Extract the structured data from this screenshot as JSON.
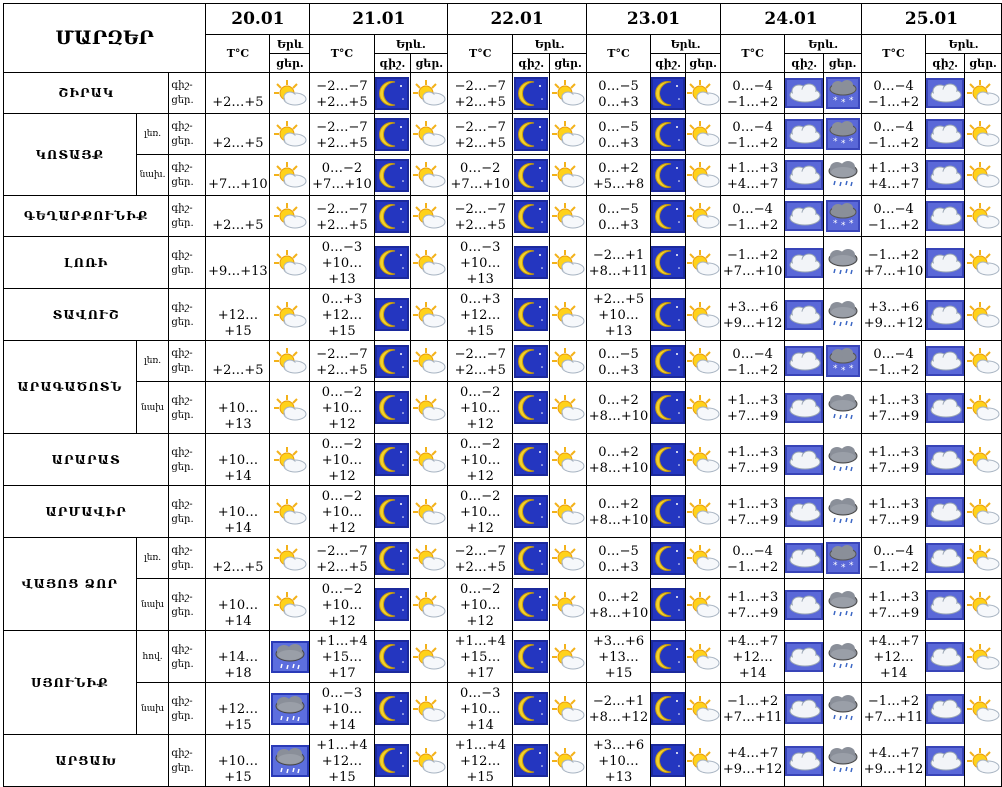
{
  "header": {
    "title": "ՄԱՐԶԵՐ",
    "dates": [
      "20.01",
      "21.01",
      "22.01",
      "23.01",
      "24.01",
      "25.01"
    ],
    "temp_label": "T°C",
    "weather_label": "Երև.",
    "weather_label_short": "Երև",
    "day_label": "ցեր.",
    "night_label": "գիշ."
  },
  "row_labels": {
    "night": "գիշ-",
    "day": "ցեր."
  },
  "regions": [
    {
      "name": "ՇԻՐԱԿ",
      "rows": [
        {
          "sub": "",
          "d0t": "+2…+5",
          "d0i": "sun-cloud",
          "t": [
            [
              "−2…−7",
              "+2…+5"
            ],
            [
              "−2…−7",
              "+2…+5"
            ],
            [
              "0…−5",
              "0…+3"
            ],
            [
              "0…−4",
              "−1…+2"
            ],
            [
              "0…−4",
              "−1…+2"
            ]
          ],
          "n": [
            "moon-night",
            "moon-night",
            "moon-night",
            "cloud",
            "cloud"
          ],
          "d": [
            "sun-cloud",
            "sun-cloud",
            "sun-cloud",
            "snow-cloud",
            "sun-cloud"
          ]
        }
      ]
    },
    {
      "name": "ԿՈՏԱՅՔ",
      "rows": [
        {
          "sub": "լեռ.",
          "d0t": "+2…+5",
          "d0i": "sun-cloud",
          "t": [
            [
              "−2…−7",
              "+2…+5"
            ],
            [
              "−2…−7",
              "+2…+5"
            ],
            [
              "0…−5",
              "0…+3"
            ],
            [
              "0…−4",
              "−1…+2"
            ],
            [
              "0…−4",
              "−1…+2"
            ]
          ],
          "n": [
            "moon-night",
            "moon-night",
            "moon-night",
            "cloud",
            "cloud"
          ],
          "d": [
            "sun-cloud",
            "sun-cloud",
            "sun-cloud",
            "snow-cloud",
            "sun-cloud"
          ]
        },
        {
          "sub": "նախ.",
          "d0t": "+7…+10",
          "d0i": "sun-cloud",
          "t": [
            [
              "0…−2",
              "+7…+10"
            ],
            [
              "0…−2",
              "+7…+10"
            ],
            [
              "0…+2",
              "+5…+8"
            ],
            [
              "+1…+3",
              "+4…+7"
            ],
            [
              "+1…+3",
              "+4…+7"
            ]
          ],
          "n": [
            "moon-night",
            "moon-night",
            "moon-night",
            "cloud",
            "cloud"
          ],
          "d": [
            "sun-cloud",
            "sun-cloud",
            "sun-cloud",
            "rain-cloud",
            "sun-cloud"
          ]
        }
      ]
    },
    {
      "name": "ԳԵՂԱՐՔՈՒՆԻՔ",
      "rows": [
        {
          "sub": "",
          "d0t": "+2…+5",
          "d0i": "sun-cloud",
          "t": [
            [
              "−2…−7",
              "+2…+5"
            ],
            [
              "−2…−7",
              "+2…+5"
            ],
            [
              "0…−5",
              "0…+3"
            ],
            [
              "0…−4",
              "−1…+2"
            ],
            [
              "0…−4",
              "−1…+2"
            ]
          ],
          "n": [
            "moon-night",
            "moon-night",
            "moon-night",
            "cloud",
            "cloud"
          ],
          "d": [
            "sun-cloud",
            "sun-cloud",
            "sun-cloud",
            "snow-cloud",
            "sun-cloud"
          ]
        }
      ]
    },
    {
      "name": "ԼՈՌԻ",
      "rows": [
        {
          "sub": "",
          "d0t": "+9…+13",
          "d0i": "sun-cloud",
          "t": [
            [
              "0…−3",
              "+10…+13"
            ],
            [
              "0…−3",
              "+10…+13"
            ],
            [
              "−2…+1",
              "+8…+11"
            ],
            [
              "−1…+2",
              "+7…+10"
            ],
            [
              "−1…+2",
              "+7…+10"
            ]
          ],
          "n": [
            "moon-night",
            "moon-night",
            "moon-night",
            "cloud",
            "cloud"
          ],
          "d": [
            "sun-cloud",
            "sun-cloud",
            "sun-cloud",
            "rain-cloud",
            "sun-cloud"
          ]
        }
      ]
    },
    {
      "name": "ՏԱՎՈՒՇ",
      "rows": [
        {
          "sub": "",
          "d0t": "+12…+15",
          "d0i": "sun-cloud",
          "t": [
            [
              "0…+3",
              "+12…+15"
            ],
            [
              "0…+3",
              "+12…+15"
            ],
            [
              "+2…+5",
              "+10…+13"
            ],
            [
              "+3…+6",
              "+9…+12"
            ],
            [
              "+3…+6",
              "+9…+12"
            ]
          ],
          "n": [
            "moon-night",
            "moon-night",
            "moon-night",
            "cloud",
            "cloud"
          ],
          "d": [
            "sun-cloud",
            "sun-cloud",
            "sun-cloud",
            "rain-cloud",
            "sun-cloud"
          ]
        }
      ]
    },
    {
      "name": "ԱՐԱԳԱԾՈՏՆ",
      "rows": [
        {
          "sub": "լեռ.",
          "d0t": "+2…+5",
          "d0i": "sun-cloud",
          "t": [
            [
              "−2…−7",
              "+2…+5"
            ],
            [
              "−2…−7",
              "+2…+5"
            ],
            [
              "0…−5",
              "0…+3"
            ],
            [
              "0…−4",
              "−1…+2"
            ],
            [
              "0…−4",
              "−1…+2"
            ]
          ],
          "n": [
            "moon-night",
            "moon-night",
            "moon-night",
            "cloud",
            "cloud"
          ],
          "d": [
            "sun-cloud",
            "sun-cloud",
            "sun-cloud",
            "snow-cloud",
            "sun-cloud"
          ]
        },
        {
          "sub": "նախ",
          "d0t": "+10…+13",
          "d0i": "sun-cloud",
          "t": [
            [
              "0…−2",
              "+10…+12"
            ],
            [
              "0…−2",
              "+10…+12"
            ],
            [
              "0…+2",
              "+8…+10"
            ],
            [
              "+1…+3",
              "+7…+9"
            ],
            [
              "+1…+3",
              "+7…+9"
            ]
          ],
          "n": [
            "moon-night",
            "moon-night",
            "moon-night",
            "cloud",
            "cloud"
          ],
          "d": [
            "sun-cloud",
            "sun-cloud",
            "sun-cloud",
            "rain-cloud",
            "sun-cloud"
          ]
        }
      ]
    },
    {
      "name": "ԱՐԱՐԱՏ",
      "rows": [
        {
          "sub": "",
          "d0t": "+10…+14",
          "d0i": "sun-cloud",
          "t": [
            [
              "0…−2",
              "+10…+12"
            ],
            [
              "0…−2",
              "+10…+12"
            ],
            [
              "0…+2",
              "+8…+10"
            ],
            [
              "+1…+3",
              "+7…+9"
            ],
            [
              "+1…+3",
              "+7…+9"
            ]
          ],
          "n": [
            "moon-night",
            "moon-night",
            "moon-night",
            "cloud",
            "cloud"
          ],
          "d": [
            "sun-cloud",
            "sun-cloud",
            "sun-cloud",
            "rain-cloud",
            "sun-cloud"
          ]
        }
      ]
    },
    {
      "name": "ԱՐՄԱՎԻՐ",
      "rows": [
        {
          "sub": "",
          "d0t": "+10…+14",
          "d0i": "sun-cloud",
          "t": [
            [
              "0…−2",
              "+10…+12"
            ],
            [
              "0…−2",
              "+10…+12"
            ],
            [
              "0…+2",
              "+8…+10"
            ],
            [
              "+1…+3",
              "+7…+9"
            ],
            [
              "+1…+3",
              "+7…+9"
            ]
          ],
          "n": [
            "moon-night",
            "moon-night",
            "moon-night",
            "cloud",
            "cloud"
          ],
          "d": [
            "sun-cloud",
            "sun-cloud",
            "sun-cloud",
            "rain-cloud",
            "sun-cloud"
          ]
        }
      ]
    },
    {
      "name": "ՎԱՅՈՑ ՁՈՐ",
      "rows": [
        {
          "sub": "լեռ.",
          "d0t": "+2…+5",
          "d0i": "sun-cloud",
          "t": [
            [
              "−2…−7",
              "+2…+5"
            ],
            [
              "−2…−7",
              "+2…+5"
            ],
            [
              "0…−5",
              "0…+3"
            ],
            [
              "0…−4",
              "−1…+2"
            ],
            [
              "0…−4",
              "−1…+2"
            ]
          ],
          "n": [
            "moon-night",
            "moon-night",
            "moon-night",
            "cloud",
            "cloud"
          ],
          "d": [
            "sun-cloud",
            "sun-cloud",
            "sun-cloud",
            "snow-cloud",
            "sun-cloud"
          ]
        },
        {
          "sub": "նախ",
          "d0t": "+10…+14",
          "d0i": "sun-cloud",
          "t": [
            [
              "0…−2",
              "+10…+12"
            ],
            [
              "0…−2",
              "+10…+12"
            ],
            [
              "0…+2",
              "+8…+10"
            ],
            [
              "+1…+3",
              "+7…+9"
            ],
            [
              "+1…+3",
              "+7…+9"
            ]
          ],
          "n": [
            "moon-night",
            "moon-night",
            "moon-night",
            "cloud",
            "cloud"
          ],
          "d": [
            "sun-cloud",
            "sun-cloud",
            "sun-cloud",
            "rain-cloud",
            "sun-cloud"
          ]
        }
      ]
    },
    {
      "name": "ՍՅՈՒՆԻՔ",
      "rows": [
        {
          "sub": "հով.",
          "d0t": "+14…+18",
          "d0i": "rain-cloud-day",
          "t": [
            [
              "+1…+4",
              "+15…+17"
            ],
            [
              "+1…+4",
              "+15…+17"
            ],
            [
              "+3…+6",
              "+13…+15"
            ],
            [
              "+4…+7",
              "+12…+14"
            ],
            [
              "+4…+7",
              "+12…+14"
            ]
          ],
          "n": [
            "moon-night",
            "moon-night",
            "moon-night",
            "cloud",
            "cloud"
          ],
          "d": [
            "sun-cloud",
            "sun-cloud",
            "sun-cloud",
            "rain-cloud",
            "sun-cloud"
          ]
        },
        {
          "sub": "նախ",
          "d0t": "+12…+15",
          "d0i": "rain-cloud-day",
          "t": [
            [
              "0…−3",
              "+10…+14"
            ],
            [
              "0…−3",
              "+10…+14"
            ],
            [
              "−2…+1",
              "+8…+12"
            ],
            [
              "−1…+2",
              "+7…+11"
            ],
            [
              "−1…+2",
              "+7…+11"
            ]
          ],
          "n": [
            "moon-night",
            "moon-night",
            "moon-night",
            "cloud",
            "cloud"
          ],
          "d": [
            "sun-cloud",
            "sun-cloud",
            "sun-cloud",
            "rain-cloud",
            "sun-cloud"
          ]
        }
      ]
    },
    {
      "name": "ԱՐՑԱԽ",
      "rows": [
        {
          "sub": "",
          "d0t": "+10…+15",
          "d0i": "rain-cloud-day",
          "t": [
            [
              "+1…+4",
              "+12…+15"
            ],
            [
              "+1…+4",
              "+12…+15"
            ],
            [
              "+3…+6",
              "+10…+13"
            ],
            [
              "+4…+7",
              "+9…+12"
            ],
            [
              "+4…+7",
              "+9…+12"
            ]
          ],
          "n": [
            "moon-night",
            "moon-night",
            "moon-night",
            "cloud",
            "cloud"
          ],
          "d": [
            "sun-cloud",
            "sun-cloud",
            "sun-cloud",
            "rain-cloud",
            "sun-cloud"
          ]
        }
      ]
    }
  ]
}
